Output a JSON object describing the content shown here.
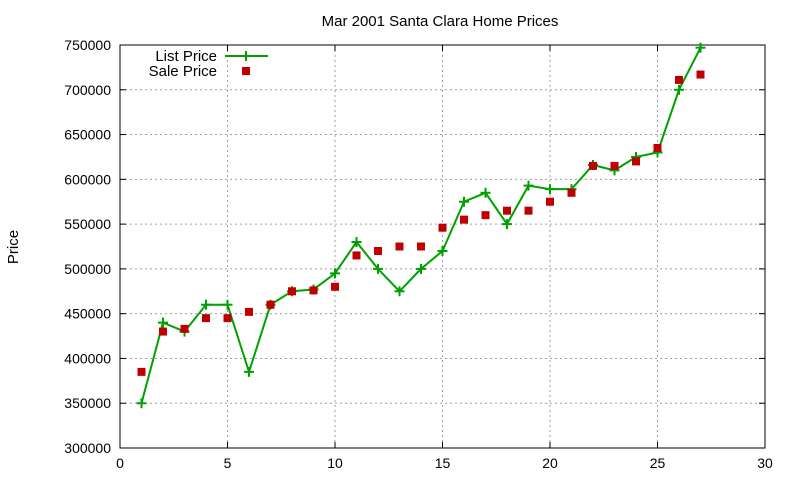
{
  "chart_data": {
    "type": "line",
    "title": "Mar 2001 Santa Clara Home Prices",
    "xlabel": "",
    "ylabel": "Price",
    "xlim": [
      0,
      30
    ],
    "ylim": [
      300000,
      750000
    ],
    "x_ticks": [
      0,
      5,
      10,
      15,
      20,
      25,
      30
    ],
    "y_ticks": [
      300000,
      350000,
      400000,
      450000,
      500000,
      550000,
      600000,
      650000,
      700000,
      750000
    ],
    "grid": true,
    "legend_position": "top-left",
    "series": [
      {
        "name": "List Price",
        "style": "lines+crosses",
        "color": "#00a000",
        "x": [
          1,
          2,
          3,
          4,
          5,
          6,
          7,
          8,
          9,
          10,
          11,
          12,
          13,
          14,
          15,
          16,
          17,
          18,
          19,
          20,
          21,
          22,
          23,
          24,
          25,
          26,
          27
        ],
        "y": [
          350000,
          440000,
          430000,
          460000,
          460000,
          385000,
          460000,
          475000,
          477000,
          495000,
          530000,
          500000,
          475000,
          500000,
          520000,
          575000,
          585000,
          550000,
          593000,
          589000,
          589000,
          616000,
          610000,
          625000,
          630000,
          700000,
          747000
        ]
      },
      {
        "name": "Sale Price",
        "style": "squares",
        "color": "#c00000",
        "x": [
          1,
          2,
          3,
          4,
          5,
          6,
          7,
          8,
          9,
          10,
          11,
          12,
          13,
          14,
          15,
          16,
          17,
          18,
          19,
          20,
          21,
          22,
          23,
          24,
          25,
          26,
          27
        ],
        "y": [
          385000,
          430000,
          433000,
          445000,
          445000,
          452000,
          460000,
          475000,
          476000,
          480000,
          515000,
          520000,
          525000,
          525000,
          546000,
          555000,
          560000,
          565000,
          565000,
          575000,
          585000,
          615000,
          615000,
          620000,
          635000,
          711000,
          717000
        ]
      }
    ]
  }
}
